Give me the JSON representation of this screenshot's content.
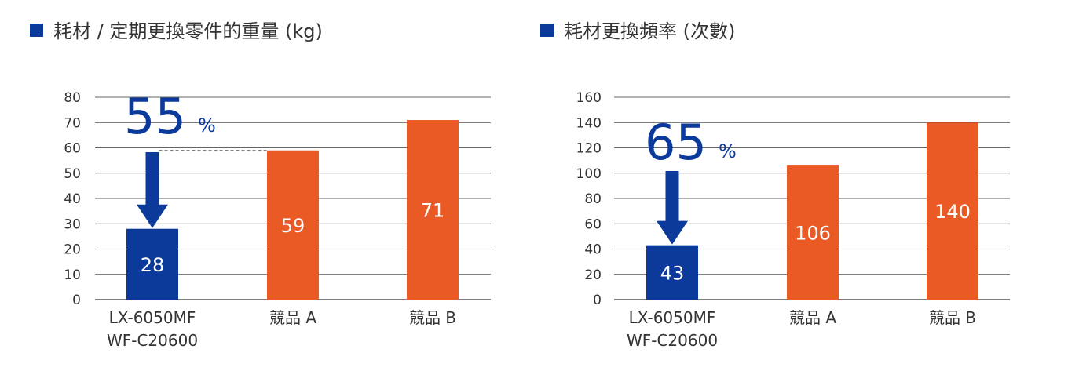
{
  "colors": {
    "accent": "#0b3a9b",
    "competitor": "#ea5a24",
    "grid": "#333333",
    "text": "#333333",
    "bar_label": "#ffffff"
  },
  "chart_data": [
    {
      "type": "bar",
      "title": "耗材 / 定期更換零件的重量 (kg)",
      "title_icon": "square-bullet-icon",
      "categories": [
        [
          "LX-6050MF",
          "WF-C20600"
        ],
        [
          "競品 A"
        ],
        [
          "競品 B"
        ]
      ],
      "values": [
        28,
        59,
        71
      ],
      "value_labels": [
        "28",
        "59",
        "71"
      ],
      "bar_colors": [
        "#0b3a9b",
        "#ea5a24",
        "#ea5a24"
      ],
      "ylim": [
        0,
        80
      ],
      "yticks": [
        "0",
        "10",
        "20",
        "30",
        "40",
        "50",
        "60",
        "70",
        "80"
      ],
      "grid": true,
      "annotation": {
        "value": "55",
        "unit": "%",
        "arrow_icon": "down-arrow-icon",
        "dashed_reference": true
      }
    },
    {
      "type": "bar",
      "title": "耗材更換頻率 (次數)",
      "title_icon": "square-bullet-icon",
      "categories": [
        [
          "LX-6050MF",
          "WF-C20600"
        ],
        [
          "競品 A"
        ],
        [
          "競品 B"
        ]
      ],
      "values": [
        43,
        106,
        140
      ],
      "value_labels": [
        "43",
        "106",
        "140"
      ],
      "bar_colors": [
        "#0b3a9b",
        "#ea5a24",
        "#ea5a24"
      ],
      "ylim": [
        0,
        160
      ],
      "yticks": [
        "0",
        "20",
        "40",
        "60",
        "80",
        "100",
        "120",
        "140",
        "160"
      ],
      "grid": true,
      "annotation": {
        "value": "65",
        "unit": "%",
        "arrow_icon": "down-arrow-icon",
        "dashed_reference": false
      }
    }
  ]
}
